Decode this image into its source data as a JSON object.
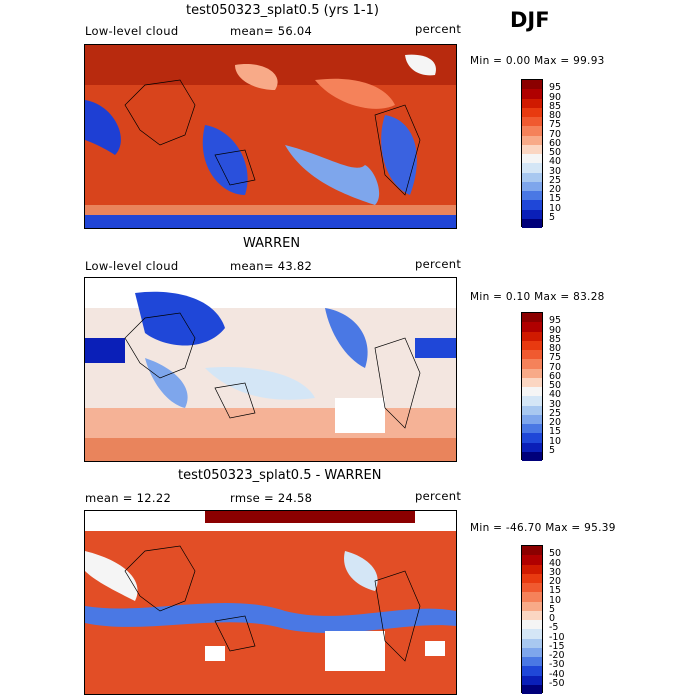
{
  "season": "DJF",
  "panels": [
    {
      "title": "test050323_splat0.5 (yrs 1-1)",
      "left_label": "Low-level cloud",
      "mid_label": "mean=  56.04",
      "right_label": "percent",
      "stat_text": "Min =   0.00 Max =  99.93"
    },
    {
      "title": "WARREN",
      "left_label": "Low-level cloud",
      "mid_label": "mean=  43.82",
      "right_label": "percent",
      "stat_text": "Min =   0.10 Max =  83.28"
    },
    {
      "title": "test050323_splat0.5 - WARREN",
      "left_label": "mean =  12.22",
      "mid_label": "rmse =  24.58",
      "right_label": "percent",
      "stat_text": "Min = -46.70 Max =  95.39"
    }
  ],
  "colorbar_abs": {
    "labels": [
      "95",
      "90",
      "85",
      "80",
      "75",
      "70",
      "60",
      "50",
      "40",
      "30",
      "25",
      "20",
      "15",
      "10",
      "5"
    ],
    "colors": [
      "#8b0000",
      "#b00000",
      "#d01a00",
      "#e83a10",
      "#f05a30",
      "#f5825a",
      "#f8aa88",
      "#fbd6c2",
      "#f5f5f5",
      "#d4e6f6",
      "#a8c8f0",
      "#7ea6ec",
      "#4a78e4",
      "#1f47d8",
      "#0a1fb8",
      "#00007a"
    ]
  },
  "colorbar_diff": {
    "labels": [
      "50",
      "40",
      "30",
      "20",
      "15",
      "10",
      "5",
      "0",
      "-5",
      "-10",
      "-15",
      "-20",
      "-30",
      "-40",
      "-50"
    ],
    "colors": [
      "#8b0000",
      "#b00000",
      "#d01a00",
      "#e83a10",
      "#f05a30",
      "#f5825a",
      "#f8aa88",
      "#fbd6c2",
      "#f5f5f5",
      "#d4e6f6",
      "#a8c8f0",
      "#7ea6ec",
      "#4a78e4",
      "#1f47d8",
      "#0a1fb8",
      "#00007a"
    ]
  },
  "maps": {
    "bg_colors": [
      "#e04a20",
      "#f3f3f3",
      "#d83a14"
    ],
    "land_colors": [
      "#1d3ed0",
      "#f0d8cc",
      "#e24e26"
    ]
  }
}
